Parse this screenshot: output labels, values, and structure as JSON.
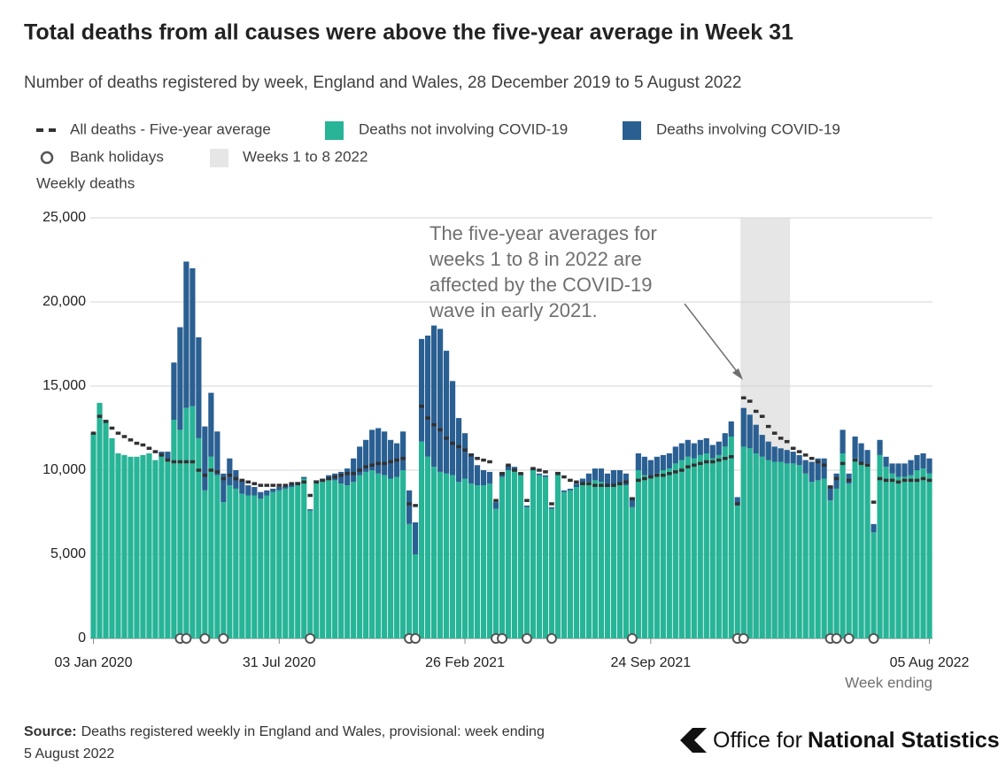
{
  "chart_data": {
    "type": "bar",
    "title": "Total deaths from all causes were above the five-year average in Week 31",
    "subtitle": "Number of deaths registered by week, England and Wales, 28 December 2019 to 5 August 2022",
    "y_label": "Weekly deaths",
    "x_label": "Week ending",
    "categories": [
      "03 Jan 2020",
      null,
      null,
      null,
      null,
      null,
      null,
      null,
      null,
      null,
      null,
      null,
      null,
      null,
      null,
      null,
      null,
      null,
      null,
      null,
      null,
      null,
      null,
      null,
      null,
      null,
      null,
      null,
      null,
      null,
      "31 Jul 2020",
      null,
      null,
      null,
      null,
      null,
      null,
      null,
      null,
      null,
      null,
      null,
      null,
      null,
      null,
      null,
      null,
      null,
      null,
      null,
      null,
      null,
      null,
      null,
      null,
      null,
      null,
      null,
      null,
      null,
      "26 Feb 2021",
      null,
      null,
      null,
      null,
      null,
      null,
      null,
      null,
      null,
      null,
      null,
      null,
      null,
      null,
      null,
      null,
      null,
      null,
      null,
      null,
      null,
      null,
      null,
      null,
      null,
      null,
      null,
      null,
      null,
      "24 Sep 2021",
      null,
      null,
      null,
      null,
      null,
      null,
      null,
      null,
      null,
      null,
      null,
      null,
      null,
      null,
      null,
      null,
      null,
      null,
      null,
      null,
      null,
      null,
      null,
      null,
      null,
      null,
      null,
      null,
      null,
      null,
      null,
      null,
      null,
      null,
      null,
      null,
      null,
      null,
      null,
      null,
      null,
      null,
      null,
      null,
      "05 Aug 2022"
    ],
    "series": [
      {
        "name": "All deaths - Five-year average",
        "mark": "dash",
        "color": "#323132",
        "values": [
          12200,
          13200,
          12900,
          12500,
          12200,
          12000,
          11800,
          11600,
          11500,
          11300,
          11100,
          10900,
          10600,
          10500,
          10500,
          10500,
          10500,
          10000,
          9700,
          10000,
          9900,
          9500,
          9700,
          9500,
          9400,
          9300,
          9200,
          9100,
          9100,
          9100,
          9100,
          9100,
          9200,
          9200,
          9300,
          8500,
          9300,
          9400,
          9500,
          9600,
          9700,
          9800,
          9800,
          10000,
          10200,
          10300,
          10400,
          10400,
          10500,
          10600,
          10700,
          8000,
          7900,
          13800,
          13100,
          12700,
          12400,
          11900,
          11600,
          11400,
          11200,
          10900,
          10700,
          10600,
          10500,
          8200,
          9800,
          10300,
          10000,
          9800,
          8200,
          10100,
          10000,
          9900,
          8000,
          9800,
          9600,
          9400,
          9300,
          9200,
          9200,
          9100,
          9100,
          9100,
          9100,
          9200,
          9300,
          8300,
          9400,
          9500,
          9600,
          9700,
          9700,
          9800,
          9900,
          10000,
          10200,
          10300,
          10400,
          10500,
          10500,
          10600,
          10700,
          10800,
          8000,
          14300,
          14100,
          13500,
          13200,
          12600,
          12200,
          11900,
          11700,
          11300,
          11100,
          10900,
          10700,
          10500,
          10300,
          9000,
          9500,
          10400,
          9400,
          10600,
          10400,
          10300,
          8100,
          9500,
          9400,
          9400,
          9300,
          9400,
          9400,
          9400,
          9500,
          9400
        ]
      },
      {
        "name": "Deaths not involving COVID-19",
        "mark": "bar",
        "color": "#27b497",
        "values": [
          12200,
          14000,
          13000,
          11900,
          11000,
          10900,
          10800,
          10800,
          10900,
          11000,
          10600,
          10900,
          10600,
          13000,
          12400,
          13700,
          13800,
          11900,
          8800,
          10800,
          9700,
          8100,
          9100,
          8900,
          8600,
          8500,
          8500,
          8300,
          8500,
          8700,
          8800,
          8900,
          9000,
          9200,
          9500,
          7600,
          9300,
          9300,
          9400,
          9400,
          9200,
          9100,
          9300,
          9700,
          9900,
          10000,
          9800,
          9700,
          9500,
          9600,
          10000,
          6800,
          5000,
          11700,
          10800,
          10200,
          9900,
          9800,
          9700,
          9300,
          9500,
          9200,
          9100,
          9100,
          9200,
          7700,
          9600,
          10000,
          10000,
          9700,
          7800,
          10000,
          9700,
          9600,
          7700,
          9800,
          8700,
          8800,
          9000,
          9200,
          9300,
          9400,
          9300,
          9000,
          9100,
          9200,
          9100,
          7800,
          10000,
          9700,
          9600,
          9800,
          10000,
          10100,
          10400,
          10600,
          10800,
          10700,
          10900,
          11000,
          10700,
          10900,
          11400,
          12000,
          7900,
          11400,
          11300,
          11000,
          10800,
          10600,
          10500,
          10500,
          10400,
          10400,
          10300,
          9800,
          9300,
          9400,
          9500,
          8200,
          8900,
          11000,
          9200,
          10700,
          10400,
          10400,
          6300,
          10900,
          10200,
          9800,
          9600,
          9600,
          9700,
          10000,
          10100,
          9800
        ]
      },
      {
        "name": "Deaths involving COVID-19",
        "mark": "bar",
        "color": "#2a5f92",
        "values": [
          0,
          0,
          0,
          0,
          0,
          0,
          0,
          0,
          0,
          0,
          0,
          200,
          500,
          3400,
          6100,
          8700,
          8200,
          6000,
          3800,
          3800,
          2600,
          1700,
          1600,
          1100,
          800,
          600,
          500,
          400,
          300,
          200,
          200,
          150,
          150,
          100,
          100,
          80,
          100,
          200,
          300,
          400,
          700,
          1000,
          1400,
          1700,
          1900,
          2400,
          2700,
          2600,
          2300,
          2000,
          2300,
          2000,
          1900,
          6100,
          7200,
          8400,
          8500,
          7300,
          5600,
          3800,
          2700,
          1800,
          1200,
          900,
          700,
          400,
          300,
          300,
          200,
          150,
          100,
          100,
          100,
          100,
          100,
          100,
          100,
          100,
          200,
          300,
          500,
          700,
          800,
          800,
          900,
          800,
          700,
          600,
          1000,
          1100,
          1000,
          1000,
          900,
          900,
          1000,
          1000,
          1000,
          900,
          900,
          900,
          800,
          800,
          800,
          900,
          500,
          2300,
          2000,
          1700,
          1300,
          1100,
          900,
          800,
          800,
          700,
          600,
          800,
          1200,
          1300,
          1200,
          900,
          900,
          1400,
          600,
          1300,
          1200,
          800,
          500,
          900,
          600,
          600,
          800,
          800,
          900,
          900,
          900,
          900
        ]
      },
      {
        "name": "Bank holidays",
        "mark": "circle",
        "color": "#555555",
        "values": [
          null,
          null,
          null,
          null,
          null,
          null,
          null,
          null,
          null,
          null,
          null,
          null,
          null,
          null,
          0,
          0,
          null,
          null,
          0,
          null,
          null,
          0,
          null,
          null,
          null,
          null,
          null,
          null,
          null,
          null,
          null,
          null,
          null,
          null,
          null,
          0,
          null,
          null,
          null,
          null,
          null,
          null,
          null,
          null,
          null,
          null,
          null,
          null,
          null,
          null,
          null,
          0,
          0,
          null,
          null,
          null,
          null,
          null,
          null,
          null,
          null,
          null,
          null,
          null,
          null,
          0,
          0,
          null,
          null,
          null,
          0,
          null,
          null,
          null,
          0,
          null,
          null,
          null,
          null,
          null,
          null,
          null,
          null,
          null,
          null,
          null,
          null,
          0,
          null,
          null,
          null,
          null,
          null,
          null,
          null,
          null,
          null,
          null,
          null,
          null,
          null,
          null,
          null,
          null,
          0,
          0,
          null,
          null,
          null,
          null,
          null,
          null,
          null,
          null,
          null,
          null,
          null,
          null,
          null,
          0,
          0,
          null,
          0,
          null,
          null,
          null,
          0,
          null,
          null,
          null,
          null,
          null,
          null,
          null,
          null,
          null
        ]
      }
    ],
    "shade": {
      "name": "Weeks 1 to 8 2022",
      "color": "#e6e6e6",
      "from": 105,
      "to": 112
    },
    "ylim": [
      0,
      25000
    ],
    "yticks": [
      0,
      {
        "value": 5000,
        "label": "5,000"
      },
      {
        "value": 10000,
        "label": "10,000"
      },
      {
        "value": 15000,
        "label": "15,000"
      },
      {
        "value": 20000,
        "label": "20,000"
      },
      {
        "value": 25000,
        "label": "25,000"
      }
    ],
    "grid": true,
    "annotation": [
      "The five-year averages for",
      "weeks 1 to 8 in 2022 are",
      "affected by the COVID-19",
      "wave in early 2021."
    ],
    "source_label": "Source:",
    "source": [
      "Deaths registered weekly in England and Wales, provisional: week ending",
      "5 August 2022"
    ],
    "logo": {
      "light": "Office for",
      "bold": "National Statistics"
    }
  }
}
